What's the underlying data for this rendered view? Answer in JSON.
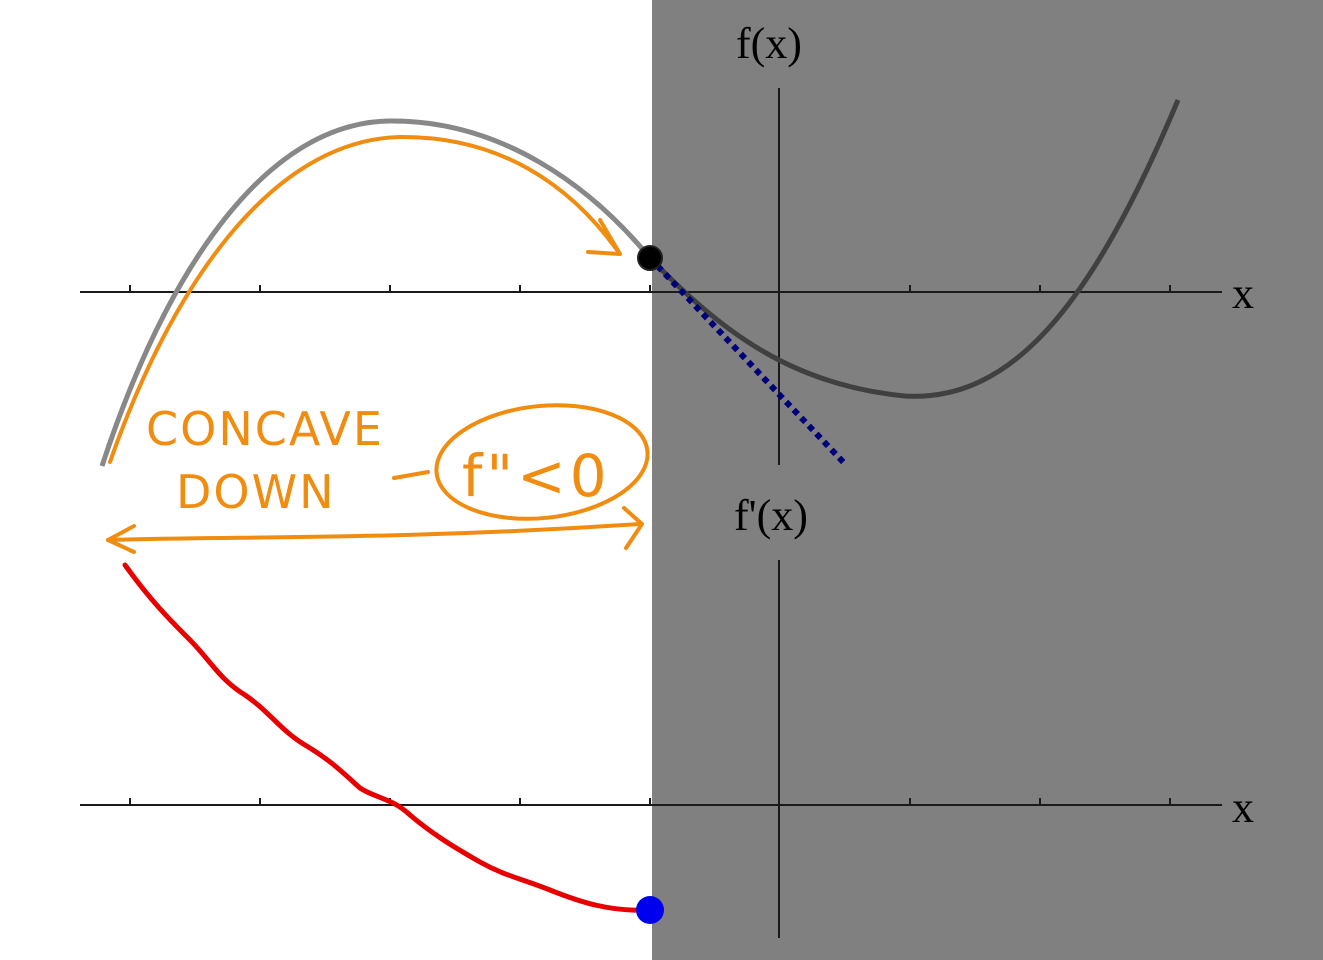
{
  "graphs": {
    "top": {
      "ylabel": "f(x)",
      "xlabel": "x"
    },
    "bottom": {
      "ylabel": "f'(x)",
      "xlabel": "x"
    }
  },
  "annotation": {
    "line1": "CONCAVE",
    "line2": "DOWN",
    "condition": "f\"<0"
  },
  "colors": {
    "shade": "#808080",
    "orange": "#f08c10",
    "red": "#e80000",
    "blue": "#0000ee",
    "tangent": "#00007a",
    "curve_light": "#888888",
    "curve_dark": "#404040"
  }
}
